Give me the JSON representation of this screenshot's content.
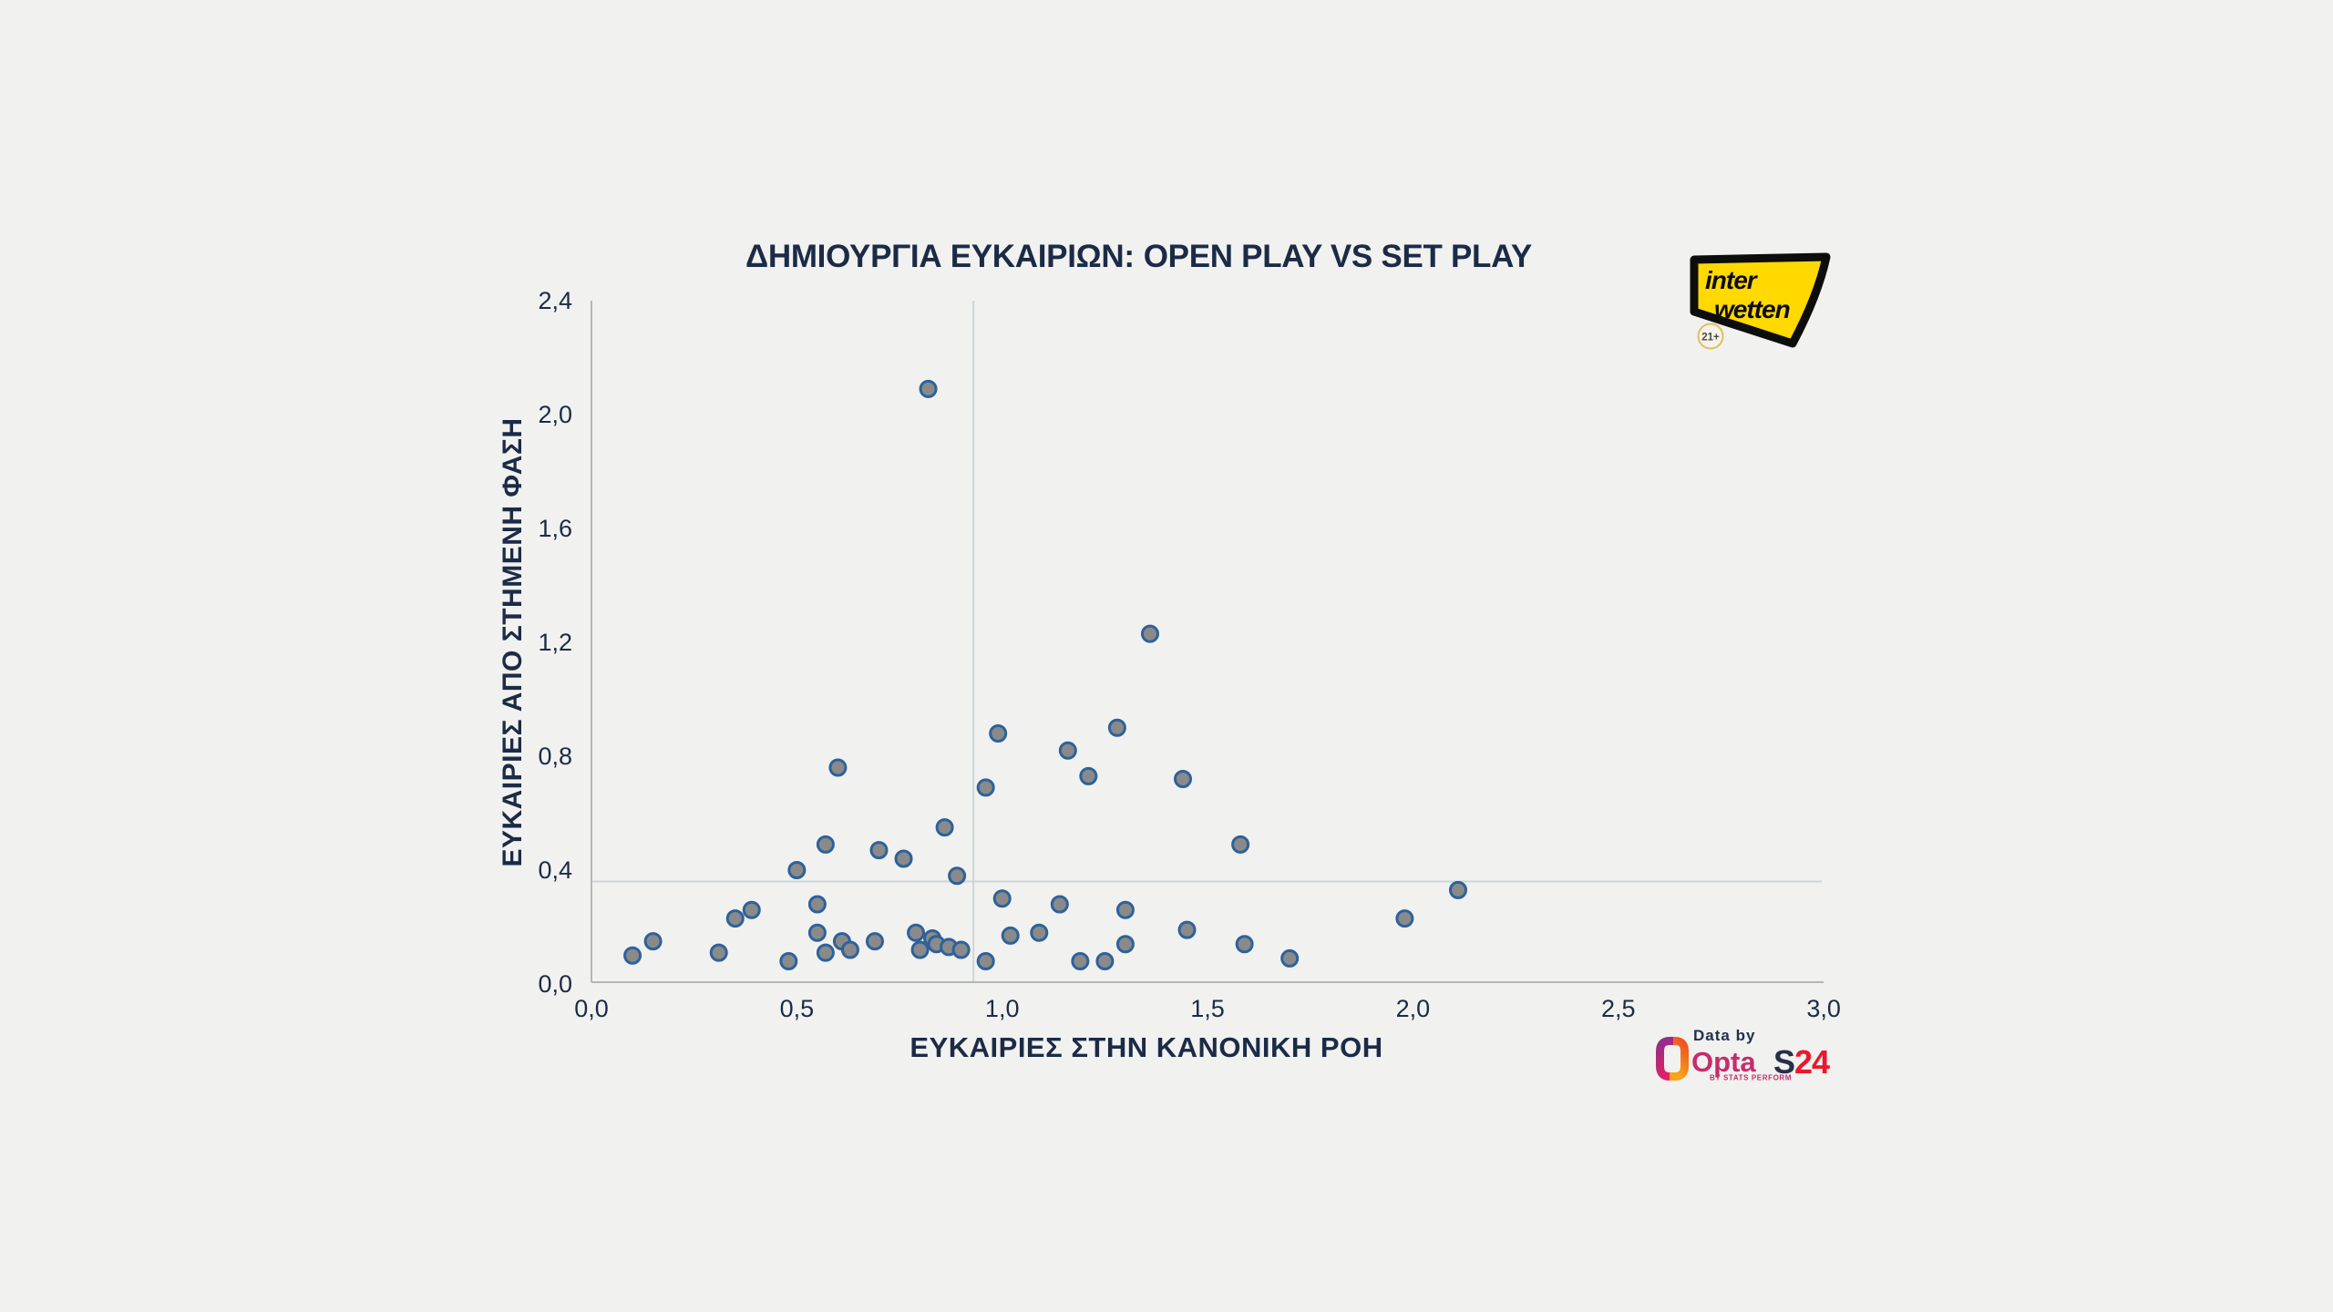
{
  "title": {
    "emphasis": "ΔΗΜΙΟΥΡΓΙΑ ΕΥΚΑΙΡΙΩΝ:",
    "rest": "OPEN PLAY VS SET PLAY"
  },
  "chart_data": {
    "type": "scatter",
    "title": "ΔΗΜΙΟΥΡΓΙΑ ΕΥΚΑΙΡΙΩΝ: OPEN PLAY VS SET PLAY",
    "xlabel": "ΕΥΚΑΙΡΙΕΣ ΣΤΗΝ ΚΑΝΟΝΙΚΗ ΡΟΗ",
    "ylabel": "ΕΥΚΑΙΡΙΕΣ ΑΠΟ ΣΤΗΜΕΝΗ ΦΑΣΗ",
    "xlim": [
      0.0,
      3.0
    ],
    "ylim": [
      0.0,
      2.4
    ],
    "grid": false,
    "legend": "none",
    "x_tick_values": [
      0,
      0.5,
      1.0,
      1.5,
      2.0,
      2.5,
      3.0
    ],
    "x_tick_labels": [
      "0,0",
      "0,5",
      "1,0",
      "1,5",
      "2,0",
      "2,5",
      "3,0"
    ],
    "y_tick_values": [
      0,
      0.4,
      0.8,
      1.2,
      1.6,
      2.0,
      2.4
    ],
    "y_tick_labels": [
      "0,0",
      "0,4",
      "0,8",
      "1,2",
      "1,6",
      "2,0",
      "2,4"
    ],
    "reference_lines": {
      "vertical_x": 0.93,
      "horizontal_y": 0.36
    },
    "points": [
      [
        0.1,
        0.1
      ],
      [
        0.15,
        0.15
      ],
      [
        0.31,
        0.11
      ],
      [
        0.35,
        0.23
      ],
      [
        0.39,
        0.26
      ],
      [
        0.48,
        0.08
      ],
      [
        0.5,
        0.4
      ],
      [
        0.55,
        0.28
      ],
      [
        0.55,
        0.18
      ],
      [
        0.57,
        0.11
      ],
      [
        0.57,
        0.49
      ],
      [
        0.6,
        0.76
      ],
      [
        0.61,
        0.15
      ],
      [
        0.63,
        0.12
      ],
      [
        0.69,
        0.15
      ],
      [
        0.7,
        0.47
      ],
      [
        0.76,
        0.44
      ],
      [
        0.79,
        0.18
      ],
      [
        0.8,
        0.12
      ],
      [
        0.82,
        2.09
      ],
      [
        0.83,
        0.16
      ],
      [
        0.84,
        0.14
      ],
      [
        0.86,
        0.55
      ],
      [
        0.87,
        0.13
      ],
      [
        0.89,
        0.38
      ],
      [
        0.9,
        0.12
      ],
      [
        0.96,
        0.08
      ],
      [
        0.96,
        0.69
      ],
      [
        0.99,
        0.88
      ],
      [
        1.0,
        0.3
      ],
      [
        1.02,
        0.17
      ],
      [
        1.09,
        0.18
      ],
      [
        1.14,
        0.28
      ],
      [
        1.16,
        0.82
      ],
      [
        1.19,
        0.08
      ],
      [
        1.21,
        0.73
      ],
      [
        1.25,
        0.08
      ],
      [
        1.28,
        0.9
      ],
      [
        1.3,
        0.26
      ],
      [
        1.3,
        0.14
      ],
      [
        1.36,
        1.23
      ],
      [
        1.44,
        0.72
      ],
      [
        1.45,
        0.19
      ],
      [
        1.58,
        0.49
      ],
      [
        1.59,
        0.14
      ],
      [
        1.7,
        0.09
      ],
      [
        1.98,
        0.23
      ],
      [
        2.11,
        0.33
      ]
    ],
    "colors": {
      "point_fill": "#8a8a8a",
      "point_stroke": "#2d629b",
      "axis_line": "#b3b7b7",
      "reference_line": "#ccd6d8",
      "text": "#1b2b47",
      "background": "#f1f1ef"
    }
  },
  "branding": {
    "interwetten": {
      "line1": "inter",
      "line2": "wetten",
      "badge": "21+",
      "yellow": "#ffd900"
    },
    "footer": {
      "data_by": "Data by",
      "opta": "Opta",
      "opta_sub": "BY STATS PERFORM",
      "opta_color": "#c62c6b",
      "s24_s": "S",
      "s24_24": "24",
      "s24_dark": "#272f49",
      "s24_red": "#e9182c"
    }
  }
}
